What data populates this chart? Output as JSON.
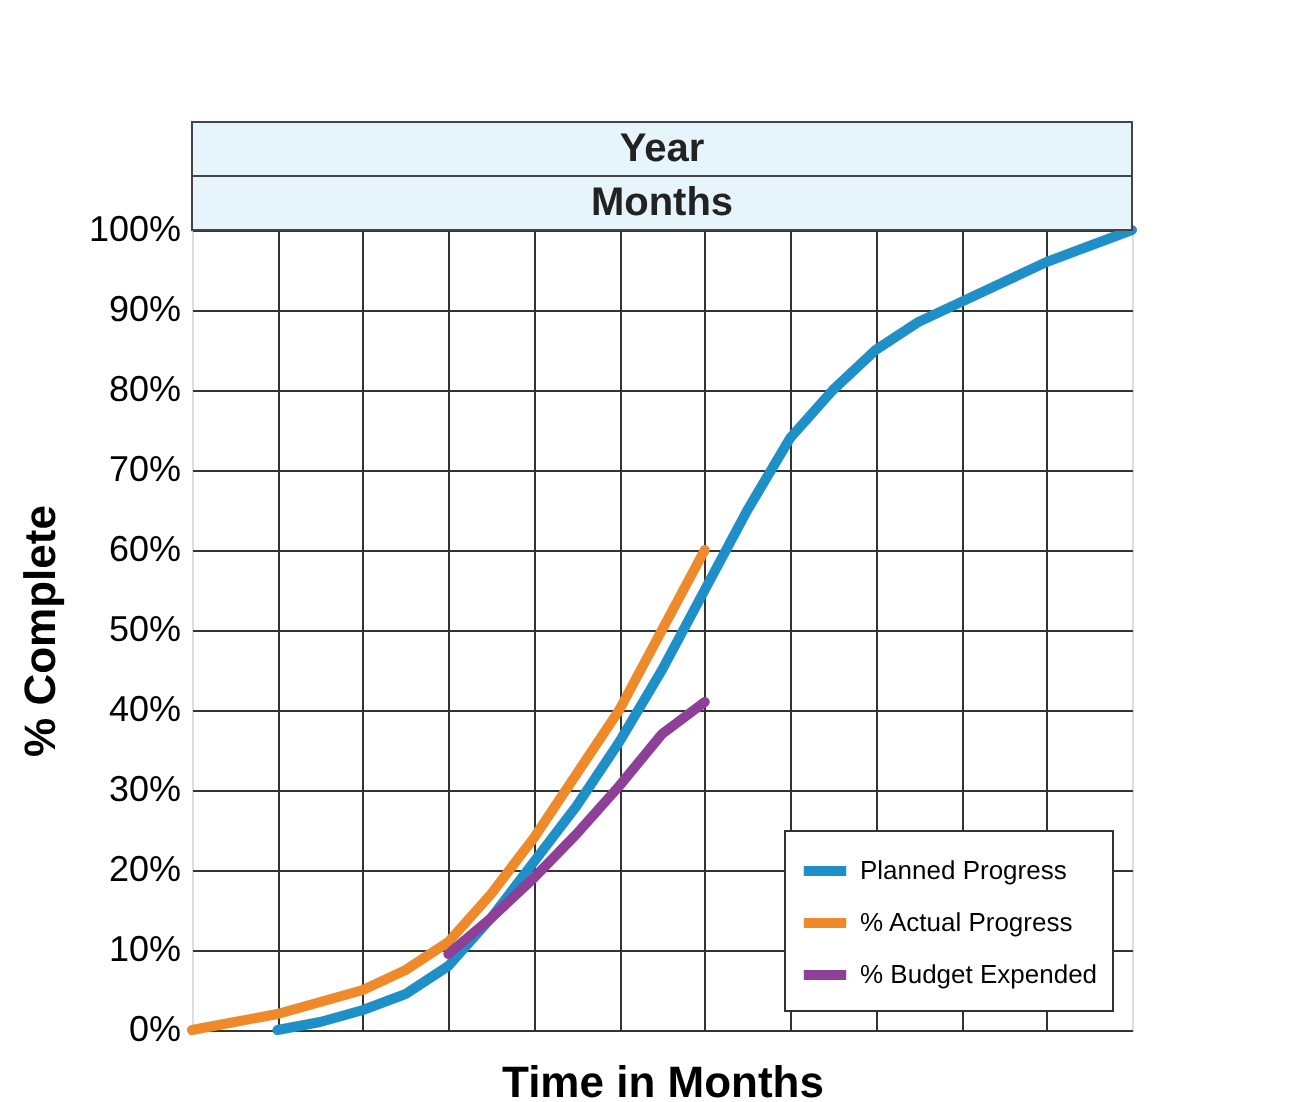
{
  "chart_data": {
    "type": "line",
    "xlabel": "Time in Months",
    "ylabel": "% Complete",
    "annotations": [
      "Year",
      "Months"
    ],
    "categories": [
      null,
      null,
      null,
      null,
      null,
      null,
      null,
      null,
      null,
      null,
      null,
      null,
      null,
      null,
      null,
      null,
      null,
      null,
      null,
      null,
      null,
      null,
      null
    ],
    "ylim": [
      0,
      100
    ],
    "yticks": [
      {
        "value": 0,
        "label": "0%"
      },
      {
        "value": 10,
        "label": "10%"
      },
      {
        "value": 20,
        "label": "20%"
      },
      {
        "value": 30,
        "label": "30%"
      },
      {
        "value": 40,
        "label": "40%"
      },
      {
        "value": 50,
        "label": "50%"
      },
      {
        "value": 60,
        "label": "60%"
      },
      {
        "value": 70,
        "label": "70%"
      },
      {
        "value": 80,
        "label": "80%"
      },
      {
        "value": 90,
        "label": "90%"
      },
      {
        "value": 100,
        "label": "100%"
      }
    ],
    "tick_labels": "y",
    "grid": true,
    "legend": "bottom right",
    "marker": "none",
    "line_style": "solid",
    "series": [
      {
        "name": "Planned Progress",
        "color": "#1f8fc8",
        "values": [
          null,
          null,
          0,
          1,
          2.5,
          4.5,
          8,
          14,
          21,
          28,
          36,
          45,
          55,
          65,
          74,
          80,
          85,
          88.5,
          91,
          93.5,
          96,
          98,
          100
        ]
      },
      {
        "name": "% Actual Progress",
        "color": "#ee8a2a",
        "values": [
          0,
          1,
          2,
          3.5,
          5,
          7.5,
          11,
          17,
          24,
          32,
          40,
          50,
          60,
          null,
          null,
          null,
          null,
          null,
          null,
          null,
          null,
          null,
          null
        ]
      },
      {
        "name": "% Budget Expended",
        "color": "#8e3f98",
        "values": [
          null,
          null,
          null,
          null,
          null,
          null,
          9.5,
          14,
          19,
          24.5,
          30.5,
          37,
          41,
          null,
          null,
          null,
          null,
          null,
          null,
          null,
          null,
          null,
          null
        ]
      }
    ]
  }
}
